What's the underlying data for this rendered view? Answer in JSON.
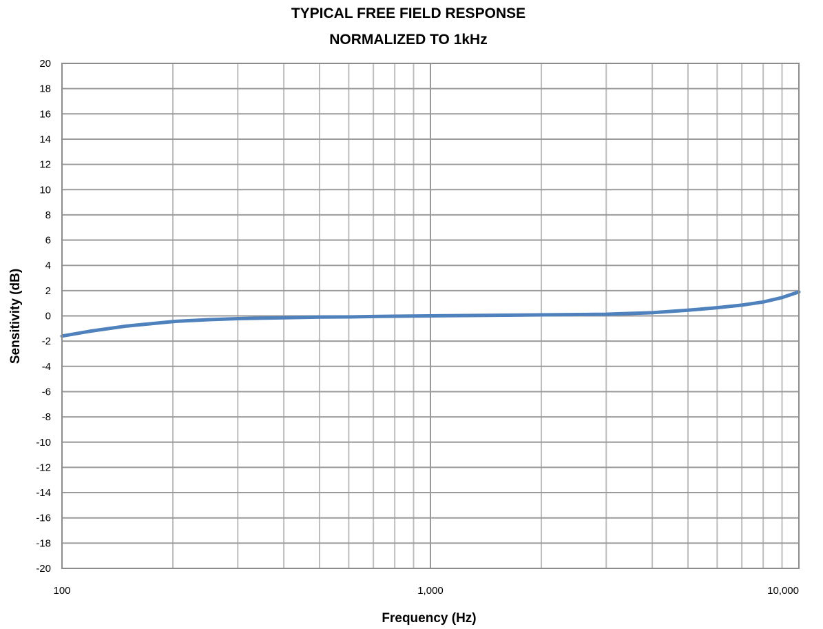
{
  "chart_data": {
    "type": "line",
    "title": "TYPICAL FREE FIELD RESPONSE",
    "subtitle": "NORMALIZED TO 1kHz",
    "xlabel": "Frequency (Hz)",
    "ylabel": "Sensitivity (dB)",
    "x_scale": "log",
    "xlim": [
      100,
      10000
    ],
    "ylim": [
      -20,
      20
    ],
    "x_tick_values": [
      100,
      1000,
      10000
    ],
    "x_tick_labels": [
      "100",
      "1,000",
      "10,000"
    ],
    "y_tick_values": [
      20,
      18,
      16,
      14,
      12,
      10,
      8,
      6,
      4,
      2,
      0,
      -2,
      -4,
      -6,
      -8,
      -10,
      -12,
      -14,
      -16,
      -18,
      -20
    ],
    "y_tick_labels": [
      "20",
      "18",
      "16",
      "14",
      "12",
      "10",
      "8",
      "6",
      "4",
      "2",
      "0",
      "-2",
      "-4",
      "-6",
      "-8",
      "-10",
      "-12",
      "-14",
      "-16",
      "-18",
      "-20"
    ],
    "grid": true,
    "legend": "none",
    "series": [
      {
        "color": "#4f81bd",
        "x": [
          100,
          120,
          150,
          200,
          250,
          300,
          400,
          500,
          600,
          700,
          800,
          1000,
          1500,
          2000,
          3000,
          4000,
          5000,
          6000,
          7000,
          8000,
          9000,
          10000
        ],
        "y": [
          -1.6,
          -1.2,
          -0.8,
          -0.45,
          -0.3,
          -0.22,
          -0.15,
          -0.1,
          -0.08,
          -0.05,
          -0.03,
          0,
          0.05,
          0.08,
          0.13,
          0.25,
          0.45,
          0.65,
          0.85,
          1.1,
          1.45,
          1.9
        ]
      }
    ]
  }
}
